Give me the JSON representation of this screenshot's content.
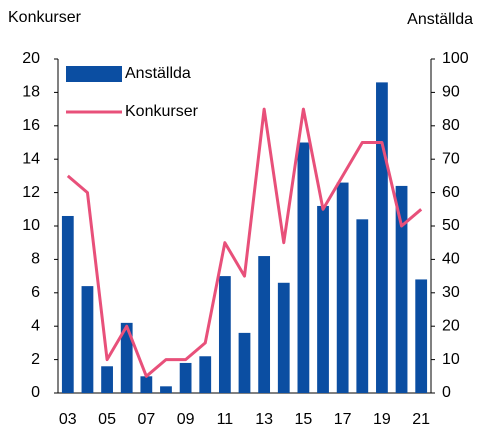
{
  "chart_data": {
    "type": "bar_line",
    "y_label": "Konkurser",
    "y2_label": "Anställda",
    "categories": [
      "03",
      null,
      "05",
      null,
      "07",
      null,
      "09",
      null,
      "11",
      null,
      "13",
      null,
      "15",
      null,
      "17",
      null,
      "19",
      null,
      "21"
    ],
    "series": [
      {
        "name": "Anställda",
        "type": "bar",
        "axis": "y2",
        "color": "#0b4ea2",
        "values": [
          53,
          32,
          8,
          21,
          5,
          2,
          9,
          11,
          35,
          18,
          41,
          33,
          75,
          56,
          63,
          52,
          93,
          62,
          34
        ]
      },
      {
        "name": "Konkurser",
        "type": "line",
        "axis": "y",
        "color": "#e8507a",
        "values": [
          13,
          12,
          2,
          4,
          1,
          2,
          2,
          3,
          9,
          7,
          17,
          9,
          17,
          11,
          13,
          15,
          15,
          10,
          11
        ]
      }
    ],
    "ylim": [
      0,
      20
    ],
    "yticks": [
      0,
      2,
      4,
      6,
      8,
      10,
      12,
      14,
      16,
      18,
      20
    ],
    "y2lim": [
      0,
      100
    ],
    "y2ticks": [
      0,
      10,
      20,
      30,
      40,
      50,
      60,
      70,
      80,
      90,
      100
    ],
    "legend": "upper left",
    "grid": false
  }
}
